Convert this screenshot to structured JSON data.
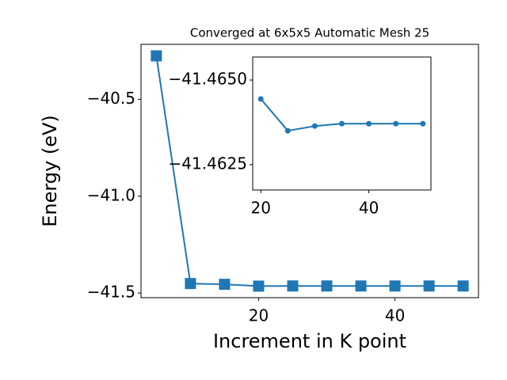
{
  "chart_data": [
    {
      "type": "line",
      "title": "Converged at 6x5x5 Automatic Mesh 25",
      "xlabel": "Increment in K point",
      "ylabel": "Energy (eV)",
      "x": [
        5,
        10,
        15,
        20,
        25,
        30,
        35,
        40,
        45,
        50
      ],
      "series": [
        {
          "color": "#1f77b4",
          "marker": "square",
          "values": [
            -40.275,
            -41.451,
            -41.455,
            -41.4644,
            -41.4635,
            -41.4636,
            -41.4637,
            -41.4637,
            -41.4637,
            -41.4637
          ]
        }
      ],
      "xlim": [
        2.75,
        52.25
      ],
      "ylim": [
        -41.524,
        -40.2155
      ],
      "xticks": [
        20,
        40
      ],
      "yticks": [
        {
          "value": -40.5,
          "label": "−40.5"
        },
        {
          "value": -41.0,
          "label": "−41.0"
        },
        {
          "value": -41.5,
          "label": "−41.5"
        }
      ]
    },
    {
      "type": "line",
      "x": [
        20,
        25,
        30,
        35,
        40,
        45,
        50
      ],
      "series": [
        {
          "color": "#1f77b4",
          "marker": "circle",
          "values": [
            -41.46444,
            -41.4635,
            -41.46364,
            -41.46371,
            -41.46371,
            -41.46371,
            -41.46371
          ]
        }
      ],
      "xlim": [
        18.5,
        51.5
      ],
      "ylim": [
        -41.46175,
        -41.46568
      ],
      "xticks": [
        20,
        40
      ],
      "yticks": [
        {
          "value": -41.465,
          "label": "−41.4650"
        },
        {
          "value": -41.4625,
          "label": "−41.4625"
        }
      ]
    }
  ]
}
